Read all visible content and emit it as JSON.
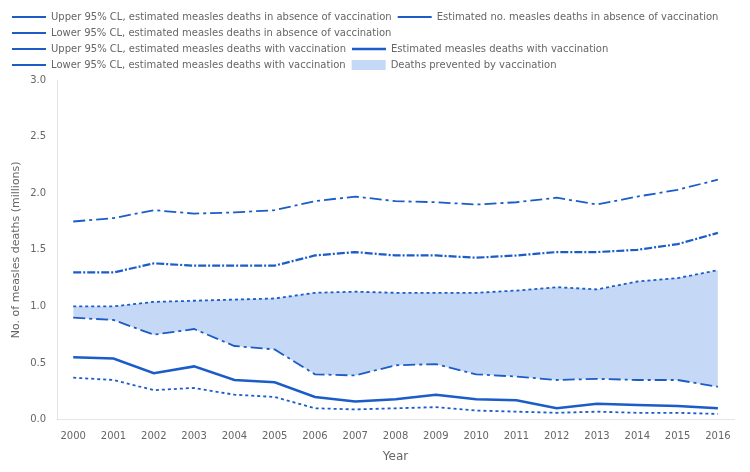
{
  "chart_data": {
    "type": "line",
    "xlabel": "Year",
    "ylabel": "No. of measles deaths (millions)",
    "x": [
      2000,
      2001,
      2002,
      2003,
      2004,
      2005,
      2006,
      2007,
      2008,
      2009,
      2010,
      2011,
      2012,
      2013,
      2014,
      2015,
      2016
    ],
    "xlim": [
      1999.6,
      2016.4
    ],
    "xticks": [
      2000,
      2001,
      2002,
      2003,
      2004,
      2005,
      2006,
      2007,
      2008,
      2009,
      2010,
      2011,
      2012,
      2013,
      2014,
      2015,
      2016
    ],
    "ylim": [
      0.0,
      3.0
    ],
    "yticks": [
      {
        "value": 0.0,
        "label": "0.0"
      },
      0.5,
      {
        "value": 1.0,
        "label": "1.0"
      },
      1.5,
      {
        "value": 2.0,
        "label": "2.0"
      },
      2.5,
      {
        "value": 3.0,
        "label": "3.0"
      }
    ],
    "grid": false,
    "legend": "upper left",
    "series": [
      {
        "name": "Deaths prevented by vaccination",
        "type": "area",
        "color": "#C5D8F5",
        "values": [
          1.0,
          1.0,
          1.04,
          1.05,
          1.06,
          1.07,
          1.12,
          1.13,
          1.12,
          1.12,
          1.12,
          1.14,
          1.17,
          1.15,
          1.22,
          1.25,
          1.32
        ],
        "base": [
          0.9,
          0.88,
          0.75,
          0.8,
          0.65,
          0.62,
          0.4,
          0.39,
          0.48,
          0.49,
          0.4,
          0.38,
          0.35,
          0.36,
          0.35,
          0.35,
          0.29
        ]
      },
      {
        "name": "Upper 95% CL, estimated measles deaths in absence of vaccination",
        "color": "#1B5CC8",
        "line_style": "dashdot",
        "values": [
          1.75,
          1.78,
          1.85,
          1.82,
          1.83,
          1.85,
          1.93,
          1.97,
          1.93,
          1.92,
          1.9,
          1.92,
          1.96,
          1.9,
          1.97,
          2.03,
          2.12
        ]
      },
      {
        "name": "Estimated no. measles deaths in absence of vaccination",
        "color": "#1B5CC8",
        "line_style": "densely_dashdot",
        "values": [
          1.3,
          1.3,
          1.38,
          1.36,
          1.36,
          1.36,
          1.45,
          1.48,
          1.45,
          1.45,
          1.43,
          1.45,
          1.48,
          1.48,
          1.5,
          1.55,
          1.65
        ]
      },
      {
        "name": "Lower 95% CL, estimated measles deaths in absence of vaccination",
        "color": "#1B5CC8",
        "line_style": "dotted",
        "values": [
          1.0,
          1.0,
          1.04,
          1.05,
          1.06,
          1.07,
          1.12,
          1.13,
          1.12,
          1.12,
          1.12,
          1.14,
          1.17,
          1.15,
          1.22,
          1.25,
          1.32
        ]
      },
      {
        "name": "Upper 95% CL, estimated measles deaths with vaccination",
        "color": "#1B5CC8",
        "line_style": "dashdot",
        "values": [
          0.9,
          0.88,
          0.75,
          0.8,
          0.65,
          0.62,
          0.4,
          0.39,
          0.48,
          0.49,
          0.4,
          0.38,
          0.35,
          0.36,
          0.35,
          0.35,
          0.29
        ]
      },
      {
        "name": "Estimated measles deaths with vaccination",
        "color": "#1B5CC8",
        "line_style": "solid",
        "values": [
          0.55,
          0.54,
          0.41,
          0.47,
          0.35,
          0.33,
          0.2,
          0.16,
          0.18,
          0.22,
          0.18,
          0.17,
          0.1,
          0.14,
          0.13,
          0.12,
          0.1
        ]
      },
      {
        "name": "Lower 95% CL, estimated measles deaths with vaccination",
        "color": "#1B5CC8",
        "line_style": "dotted",
        "values": [
          0.37,
          0.35,
          0.26,
          0.28,
          0.22,
          0.2,
          0.1,
          0.09,
          0.1,
          0.11,
          0.08,
          0.07,
          0.06,
          0.07,
          0.06,
          0.06,
          0.05
        ]
      }
    ]
  }
}
